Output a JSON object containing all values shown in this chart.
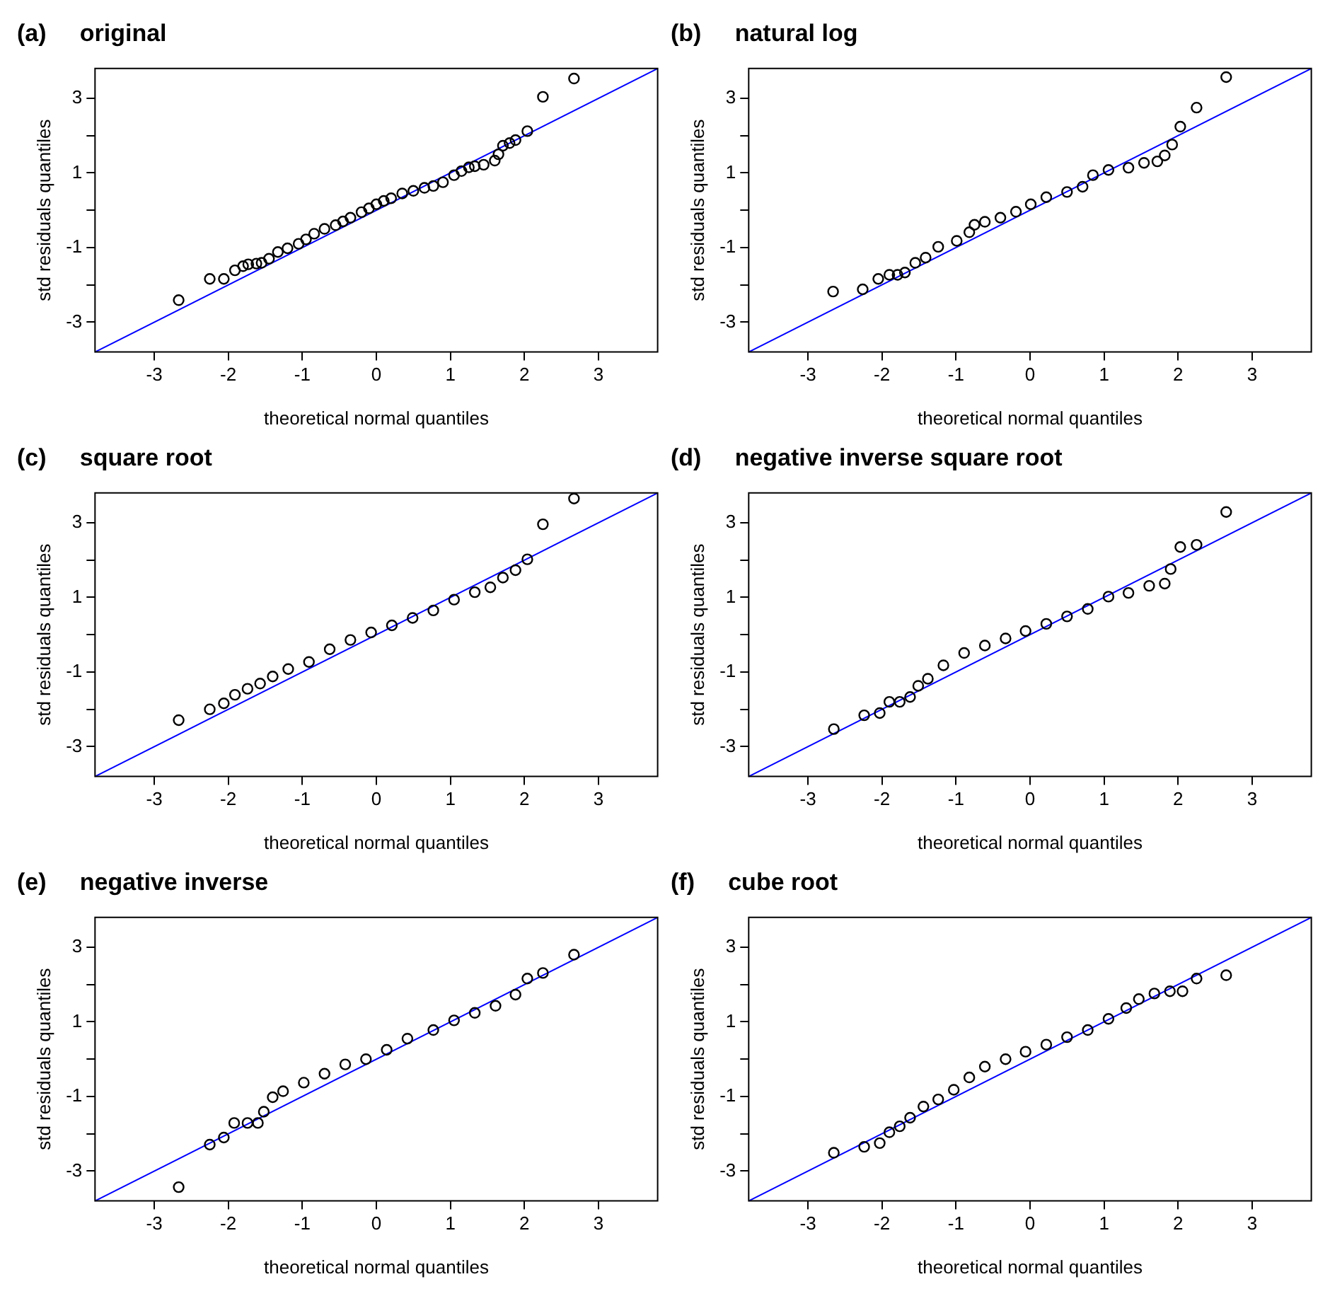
{
  "chart_data": [
    {
      "type": "scatter",
      "title": "(a)     original",
      "xlabel": "theoretical normal quantiles",
      "ylabel": "std residuals quantiles",
      "xlim": [
        -3.8,
        3.8
      ],
      "ylim": [
        -3.8,
        3.8
      ],
      "xticks": [
        -3,
        -2,
        -1,
        0,
        1,
        2,
        3
      ],
      "yticks": [
        -3,
        {
          "value": -2,
          "label": null
        },
        -1,
        {
          "value": 0,
          "label": null
        },
        1,
        {
          "value": 2,
          "label": null
        },
        3
      ],
      "series": [
        {
          "marker": "circle",
          "color": "#000000",
          "x": [
            -2.67,
            -2.25,
            -2.06,
            -1.91,
            -1.8,
            -1.73,
            -1.62,
            -1.55,
            -1.45,
            -1.33,
            -1.2,
            -1.05,
            -0.95,
            -0.84,
            -0.7,
            -0.55,
            -0.45,
            -0.35,
            -0.2,
            -0.1,
            0,
            0.1,
            0.2,
            0.35,
            0.5,
            0.65,
            0.77,
            0.9,
            1.05,
            1.15,
            1.25,
            1.33,
            1.45,
            1.6,
            1.65,
            1.71,
            1.8,
            1.88,
            2.04,
            2.25,
            2.67
          ],
          "values": [
            -2.41,
            -1.84,
            -1.84,
            -1.61,
            -1.5,
            -1.45,
            -1.43,
            -1.41,
            -1.3,
            -1.12,
            -1.02,
            -0.9,
            -0.78,
            -0.63,
            -0.5,
            -0.4,
            -0.3,
            -0.2,
            -0.05,
            0.05,
            0.16,
            0.25,
            0.32,
            0.45,
            0.52,
            0.6,
            0.65,
            0.75,
            0.94,
            1.05,
            1.15,
            1.18,
            1.22,
            1.33,
            1.5,
            1.73,
            1.8,
            1.88,
            2.12,
            3.04,
            3.53
          ]
        },
        {
          "type": "line",
          "marker": "none",
          "color": "#0000ff",
          "x": [
            -3.8,
            3.8
          ],
          "values": [
            -3.8,
            3.8
          ]
        }
      ]
    },
    {
      "type": "scatter",
      "title": "(b)     natural log",
      "xlabel": "theoretical normal quantiles",
      "ylabel": "std residuals quantiles",
      "xlim": [
        -3.8,
        3.8
      ],
      "ylim": [
        -3.8,
        3.8
      ],
      "xticks": [
        -3,
        -2,
        -1,
        0,
        1,
        2,
        3
      ],
      "yticks": [
        -3,
        {
          "value": -2,
          "label": null
        },
        -1,
        {
          "value": 0,
          "label": null
        },
        1,
        {
          "value": 2,
          "label": null
        },
        3
      ],
      "series": [
        {
          "marker": "circle",
          "color": "#000000",
          "x": [
            -2.66,
            -2.26,
            -2.05,
            -1.9,
            -1.79,
            -1.69,
            -1.55,
            -1.41,
            -1.24,
            -0.99,
            -0.82,
            -0.75,
            -0.61,
            -0.4,
            -0.19,
            0.01,
            0.22,
            0.5,
            0.71,
            0.85,
            1.06,
            1.33,
            1.54,
            1.72,
            1.82,
            1.92,
            2.03,
            2.25,
            2.65
          ],
          "values": [
            -2.18,
            -2.12,
            -1.84,
            -1.73,
            -1.73,
            -1.67,
            -1.41,
            -1.27,
            -0.98,
            -0.82,
            -0.59,
            -0.39,
            -0.31,
            -0.2,
            -0.04,
            0.16,
            0.35,
            0.49,
            0.63,
            0.94,
            1.08,
            1.14,
            1.27,
            1.31,
            1.47,
            1.76,
            2.24,
            2.75,
            3.57
          ]
        },
        {
          "type": "line",
          "marker": "none",
          "color": "#0000ff",
          "x": [
            -3.8,
            3.8
          ],
          "values": [
            -3.8,
            3.8
          ]
        }
      ]
    },
    {
      "type": "scatter",
      "title": "(c)     square root",
      "xlabel": "theoretical normal quantiles",
      "ylabel": "std residuals quantiles",
      "xlim": [
        -3.8,
        3.8
      ],
      "ylim": [
        -3.8,
        3.8
      ],
      "xticks": [
        -3,
        -2,
        -1,
        0,
        1,
        2,
        3
      ],
      "yticks": [
        -3,
        {
          "value": -2,
          "label": null
        },
        -1,
        {
          "value": 0,
          "label": null
        },
        1,
        {
          "value": 2,
          "label": null
        },
        3
      ],
      "series": [
        {
          "marker": "circle",
          "color": "#000000",
          "x": [
            -2.67,
            -2.25,
            -2.06,
            -1.91,
            -1.74,
            -1.57,
            -1.4,
            -1.19,
            -0.91,
            -0.63,
            -0.35,
            -0.07,
            0.21,
            0.49,
            0.77,
            1.05,
            1.33,
            1.54,
            1.71,
            1.88,
            2.04,
            2.25,
            2.67
          ],
          "values": [
            -2.29,
            -2.0,
            -1.84,
            -1.61,
            -1.45,
            -1.31,
            -1.12,
            -0.92,
            -0.73,
            -0.39,
            -0.14,
            0.06,
            0.25,
            0.45,
            0.65,
            0.94,
            1.14,
            1.27,
            1.53,
            1.73,
            2.02,
            2.96,
            3.65
          ]
        },
        {
          "type": "line",
          "marker": "none",
          "color": "#0000ff",
          "x": [
            -3.8,
            3.8
          ],
          "values": [
            -3.8,
            3.8
          ]
        }
      ]
    },
    {
      "type": "scatter",
      "title": "(d)     negative inverse square root",
      "xlabel": "theoretical normal quantiles",
      "ylabel": "std residuals quantiles",
      "xlim": [
        -3.8,
        3.8
      ],
      "ylim": [
        -3.8,
        3.8
      ],
      "xticks": [
        -3,
        -2,
        -1,
        0,
        1,
        2,
        3
      ],
      "yticks": [
        -3,
        {
          "value": -2,
          "label": null
        },
        -1,
        {
          "value": 0,
          "label": null
        },
        1,
        {
          "value": 2,
          "label": null
        },
        3
      ],
      "series": [
        {
          "marker": "circle",
          "color": "#000000",
          "x": [
            -2.65,
            -2.24,
            -2.03,
            -1.9,
            -1.76,
            -1.62,
            -1.51,
            -1.38,
            -1.17,
            -0.89,
            -0.61,
            -0.33,
            -0.06,
            0.22,
            0.5,
            0.78,
            1.06,
            1.33,
            1.61,
            1.82,
            1.9,
            2.03,
            2.25,
            2.65
          ],
          "values": [
            -2.53,
            -2.16,
            -2.1,
            -1.8,
            -1.8,
            -1.67,
            -1.37,
            -1.18,
            -0.82,
            -0.49,
            -0.29,
            -0.1,
            0.1,
            0.29,
            0.49,
            0.69,
            1.02,
            1.12,
            1.31,
            1.37,
            1.76,
            2.35,
            2.41,
            3.29
          ]
        },
        {
          "type": "line",
          "marker": "none",
          "color": "#0000ff",
          "x": [
            -3.8,
            3.8
          ],
          "values": [
            -3.8,
            3.8
          ]
        }
      ]
    },
    {
      "type": "scatter",
      "title": "(e)     negative inverse",
      "xlabel": "theoretical normal quantiles",
      "ylabel": "std residuals quantiles",
      "xlim": [
        -3.8,
        3.8
      ],
      "ylim": [
        -3.8,
        3.8
      ],
      "xticks": [
        -3,
        -2,
        -1,
        0,
        1,
        2,
        3
      ],
      "yticks": [
        -3,
        {
          "value": -2,
          "label": null
        },
        -1,
        {
          "value": 0,
          "label": null
        },
        1,
        {
          "value": 2,
          "label": null
        },
        3
      ],
      "series": [
        {
          "marker": "circle",
          "color": "#000000",
          "x": [
            -2.67,
            -2.25,
            -2.06,
            -1.92,
            -1.74,
            -1.6,
            -1.52,
            -1.4,
            -1.26,
            -0.98,
            -0.7,
            -0.42,
            -0.14,
            0.14,
            0.42,
            0.77,
            1.05,
            1.33,
            1.61,
            1.88,
            2.04,
            2.25,
            2.67
          ],
          "values": [
            -3.43,
            -2.29,
            -2.1,
            -1.71,
            -1.71,
            -1.71,
            -1.41,
            -1.02,
            -0.86,
            -0.63,
            -0.39,
            -0.14,
            0,
            0.25,
            0.55,
            0.78,
            1.04,
            1.24,
            1.43,
            1.73,
            2.16,
            2.31,
            2.8
          ]
        },
        {
          "type": "line",
          "marker": "none",
          "color": "#0000ff",
          "x": [
            -3.8,
            3.8
          ],
          "values": [
            -3.8,
            3.8
          ]
        }
      ]
    },
    {
      "type": "scatter",
      "title": "(f)     cube root",
      "xlabel": "theoretical normal quantiles",
      "ylabel": "std residuals quantiles",
      "xlim": [
        -3.8,
        3.8
      ],
      "ylim": [
        -3.8,
        3.8
      ],
      "xticks": [
        -3,
        -2,
        -1,
        0,
        1,
        2,
        3
      ],
      "yticks": [
        -3,
        {
          "value": -2,
          "label": null
        },
        -1,
        {
          "value": 0,
          "label": null
        },
        1,
        {
          "value": 2,
          "label": null
        },
        3
      ],
      "series": [
        {
          "marker": "circle",
          "color": "#000000",
          "x": [
            -2.65,
            -2.24,
            -2.03,
            -1.9,
            -1.76,
            -1.62,
            -1.44,
            -1.24,
            -1.03,
            -0.82,
            -0.61,
            -0.33,
            -0.06,
            0.22,
            0.5,
            0.78,
            1.06,
            1.3,
            1.47,
            1.68,
            1.89,
            2.06,
            2.25,
            2.65
          ],
          "values": [
            -2.51,
            -2.35,
            -2.25,
            -1.96,
            -1.8,
            -1.57,
            -1.27,
            -1.08,
            -0.82,
            -0.49,
            -0.2,
            0,
            0.2,
            0.39,
            0.59,
            0.78,
            1.08,
            1.37,
            1.61,
            1.76,
            1.82,
            1.82,
            2.16,
            2.25
          ]
        },
        {
          "type": "line",
          "marker": "none",
          "color": "#0000ff",
          "x": [
            -3.8,
            3.8
          ],
          "values": [
            -3.8,
            3.8
          ]
        }
      ]
    }
  ]
}
